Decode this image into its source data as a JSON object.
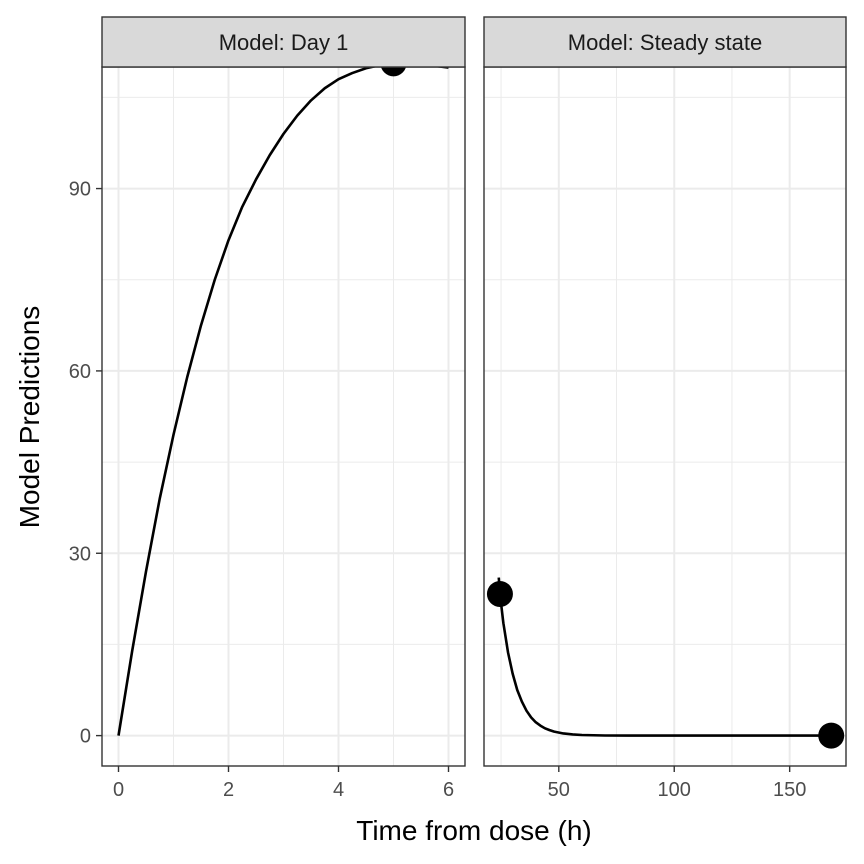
{
  "chart_data": {
    "type": "line",
    "xlabel": "Time from dose (h)",
    "ylabel": "Model Predictions",
    "ylim": [
      -5,
      110
    ],
    "y_ticks": [
      0,
      30,
      60,
      90
    ],
    "grid": true,
    "theme": "bw",
    "line_color": "#000000",
    "point_color": "#000000",
    "panels": [
      {
        "strip_label": "Model: Day 1",
        "xlim": [
          -0.3,
          6.3
        ],
        "x_ticks": [
          0,
          2,
          4,
          6
        ],
        "x_minor": [
          1,
          3,
          5
        ],
        "series": [
          {
            "x": [
              0,
              0.25,
              0.5,
              0.75,
              1,
              1.25,
              1.5,
              1.75,
              2,
              2.25,
              2.5,
              2.75,
              3,
              3.25,
              3.5,
              3.75,
              4,
              4.25,
              4.5,
              4.75,
              5,
              5.25,
              5.5,
              5.75,
              6
            ],
            "y": [
              0,
              14,
              27,
              39,
              49.5,
              59,
              67.5,
              75,
              81.5,
              87,
              91.5,
              95.5,
              99,
              102,
              104.5,
              106.5,
              108,
              109,
              109.8,
              110.3,
              110.6,
              110.7,
              110.5,
              110.2,
              109.9
            ]
          }
        ],
        "points": [
          {
            "x": 5,
            "y": 110.6
          }
        ]
      },
      {
        "strip_label": "Model: Steady state",
        "xlim": [
          17.6,
          174.4
        ],
        "x_ticks": [
          50,
          100,
          150
        ],
        "x_minor": [
          25,
          75,
          125
        ],
        "series": [
          {
            "x": [
              24,
              24.5,
              26,
              28,
              30,
              32,
              34,
              36,
              38,
              40,
              42,
              44,
              46,
              48,
              52,
              56,
              60,
              70,
              80,
              100,
              130,
              168
            ],
            "y": [
              26,
              23.3,
              18.5,
              13.7,
              10.2,
              7.5,
              5.6,
              4.1,
              3.0,
              2.2,
              1.65,
              1.2,
              0.9,
              0.65,
              0.35,
              0.19,
              0.1,
              0.02,
              0,
              0,
              0,
              0
            ]
          }
        ],
        "points": [
          {
            "x": 24.5,
            "y": 23.3
          },
          {
            "x": 168,
            "y": 0
          }
        ]
      }
    ]
  }
}
